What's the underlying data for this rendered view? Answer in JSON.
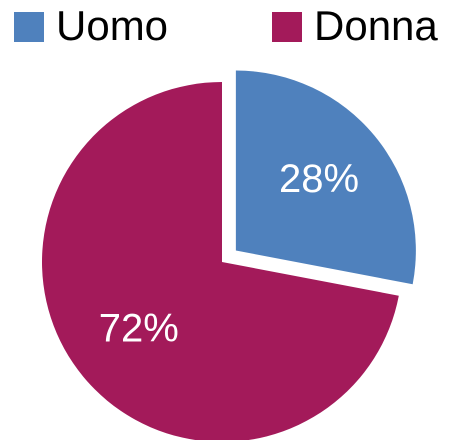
{
  "chart_data": {
    "type": "pie",
    "categories": [
      "Uomo",
      "Donna"
    ],
    "values": [
      28,
      72
    ],
    "value_labels": [
      "28%",
      "72%"
    ],
    "colors": [
      "#4f81bd",
      "#a31a5a"
    ]
  }
}
